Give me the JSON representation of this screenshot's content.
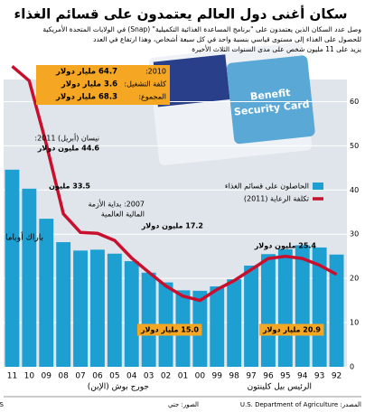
{
  "chart_data": {
    "type": "bar",
    "title": "سكان أغنى دول العالم يعتمدون على قسائم الغذاء",
    "subtitle": [
      "وصل عدد السكان الذين يعتمدون على \"برنامج المساعدة الغذائية التكميلية\" (Snap) في الولايات المتحدة الأمريكية",
      "للحصول على الغذاء إلى مستوى قياسي بنسبة واحد في كل سبعة أشخاص، وهذا ارتفاع في العدد",
      "يزيد على 11 مليون شخص على مدى السنوات الثلاث الأخيرة"
    ],
    "categories": [
      "92",
      "93",
      "94",
      "95",
      "96",
      "97",
      "98",
      "99",
      "00",
      "01",
      "02",
      "03",
      "04",
      "05",
      "06",
      "07",
      "08",
      "09",
      "10",
      "11"
    ],
    "series": [
      {
        "name": "الحاصلون على قسائم الغذاء",
        "color": "#1d9fd2",
        "type": "bar",
        "values": [
          25.4,
          27.0,
          27.5,
          26.6,
          25.5,
          22.9,
          19.8,
          18.2,
          17.2,
          17.3,
          19.1,
          21.3,
          23.9,
          25.6,
          26.5,
          26.3,
          28.2,
          33.5,
          40.3,
          44.6
        ]
      },
      {
        "name": "تكلفة الرعاية (2011)",
        "color": "#c8102e",
        "type": "line",
        "values": [
          20.9,
          23,
          24.5,
          25,
          24.5,
          22,
          19.5,
          17.5,
          15.0,
          16,
          18.3,
          21.4,
          24.6,
          28.6,
          30.2,
          30.4,
          34.6,
          50.4,
          64.7,
          68
        ]
      }
    ],
    "ylim": [
      0,
      65
    ],
    "yticks": [
      0,
      10,
      20,
      30,
      40,
      50,
      60
    ],
    "grid": true,
    "box": [
      "2010:",
      "64.7 مليار دولار",
      "كلفة التشغيل:",
      "3.6 مليار دولار",
      "المجموع:",
      "68.3 مليار دولار"
    ],
    "annotations": [
      "نيسان (أبريل) 2011:",
      "44.6 مليون دولار",
      "33.5 مليون",
      "2007: بداية الأزمة",
      "المالية العالمية",
      "17.2 مليون دولار",
      "25.4 مليون دولار",
      "15.0 مليار دولار",
      "20.9 مليار دولار"
    ],
    "presidents": [
      "باراك أوباما",
      "جورج بوش (الإبن)",
      "الرئيس بيل كلينتون"
    ],
    "footer": [
      "المصدر: U.S. Department of Agriculture",
      "الصور: جتي",
      "© GRAPHIC NEWS"
    ]
  }
}
